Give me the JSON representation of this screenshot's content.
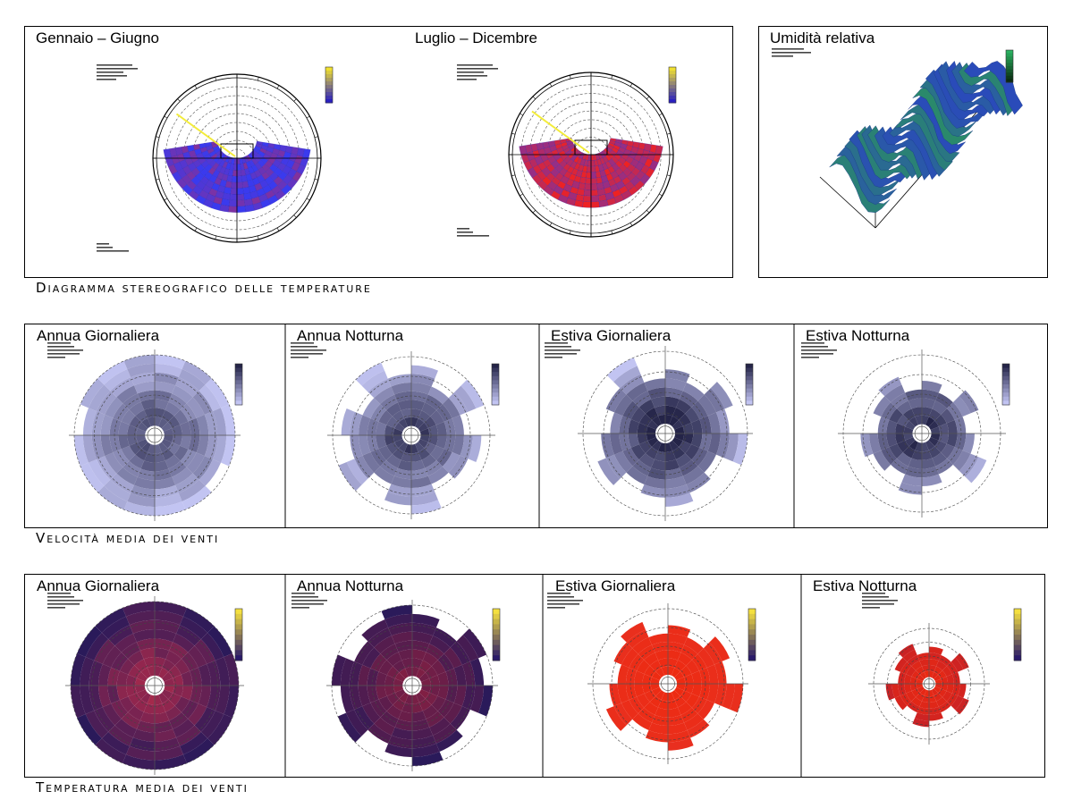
{
  "sections": {
    "stereographic": {
      "caption": "Diagramma stereografico delle temperature",
      "period_left": "Gennaio – Giugno",
      "period_right": "Luglio – Dicembre"
    },
    "humidity": {
      "title": "Umidità relativa"
    },
    "wind_speed": {
      "caption": "Velocità media dei venti",
      "panels": [
        "Annua Giornaliera",
        "Annua Notturna",
        "Estiva Giornaliera",
        "Estiva Notturna"
      ]
    },
    "wind_temperature": {
      "caption": "Temperatura media dei venti",
      "panels": [
        "Annua Giornaliera",
        "Annua Notturna",
        "Estiva Giornaliera",
        "Estiva Notturna"
      ]
    }
  },
  "colors": {
    "speed_light": "#c2c4f2",
    "speed_dark": "#242448",
    "temp_dark": "#2a1a5a",
    "temp_red": "#ee2a10",
    "sun_path_blue": "#3a3aee",
    "sun_path_red": "#ee2222",
    "humidity_surface": "#2a6a8a"
  }
}
